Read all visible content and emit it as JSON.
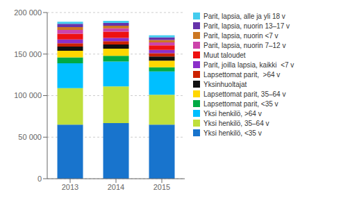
{
  "chart_data": {
    "type": "bar",
    "stacked": true,
    "categories": [
      "2013",
      "2014",
      "2015"
    ],
    "series": [
      {
        "name": "Yksi henkilö, <35 v",
        "color": "#1874CD",
        "values": [
          65000,
          67000,
          65000
        ]
      },
      {
        "name": "Yksi henkilö, 35–64 v",
        "color": "#BFDF3C",
        "values": [
          44000,
          44000,
          36000
        ]
      },
      {
        "name": "Yksi henkilö, >64 v",
        "color": "#00BFFF",
        "values": [
          30000,
          30000,
          28000
        ]
      },
      {
        "name": "Lapsettomat parit, <35 v",
        "color": "#00AA44",
        "values": [
          7000,
          7000,
          5000
        ]
      },
      {
        "name": "Lapsettomat parit, 35–64 v",
        "color": "#FFD700",
        "values": [
          8000,
          8500,
          8000
        ]
      },
      {
        "name": "Yksinhuoltajat",
        "color": "#111111",
        "values": [
          5000,
          5000,
          5000
        ]
      },
      {
        "name": "Lapsettomat parit,  >64 v",
        "color": "#CC2200",
        "values": [
          4000,
          4000,
          4000
        ]
      },
      {
        "name": "Parit, joilla lapsia, kaikki  <7 v",
        "color": "#8B2FC9",
        "values": [
          4500,
          4000,
          4000
        ]
      },
      {
        "name": "Muut taloudet",
        "color": "#EE1111",
        "values": [
          7000,
          7500,
          5500
        ]
      },
      {
        "name": "Parit, lapsia, nuorin 7–12 v",
        "color": "#CC44AA",
        "values": [
          4500,
          4000,
          3500
        ]
      },
      {
        "name": "Parit, lapsia, nuorin <7 v",
        "color": "#CC7722",
        "values": [
          3500,
          3000,
          3000
        ]
      },
      {
        "name": "Parit, lapsia, nuorin 13–17 v",
        "color": "#6633AA",
        "values": [
          4000,
          3500,
          3000
        ]
      },
      {
        "name": "Parit, lapsia, alle ja yli 18 v",
        "color": "#44CCEE",
        "values": [
          2500,
          2500,
          2500
        ]
      }
    ],
    "ylim": [
      0,
      200000
    ],
    "yticks": [
      0,
      {
        "value": 50000,
        "label": "50 000"
      },
      {
        "value": 100000,
        "label": "100 000"
      },
      {
        "value": 150000,
        "label": "150 000"
      },
      {
        "value": 200000,
        "label": "200 000"
      }
    ],
    "grid": true,
    "legend": "right"
  }
}
